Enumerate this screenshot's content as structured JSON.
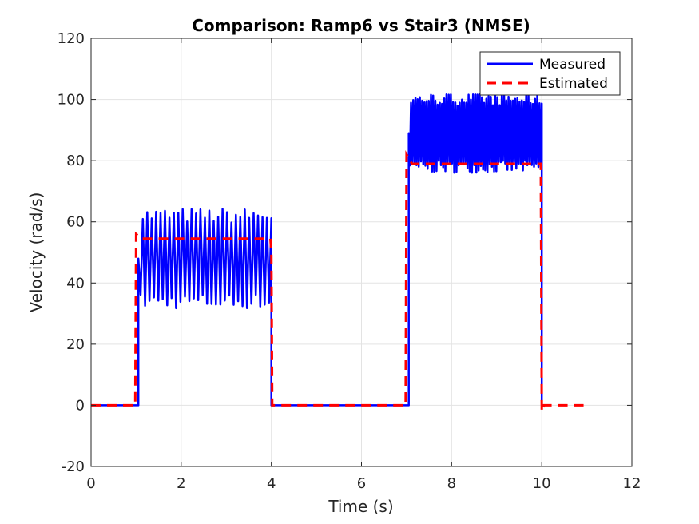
{
  "chart_data": {
    "type": "line",
    "title": "Comparison: Ramp6 vs Stair3 (NMSE)",
    "xlabel": "Time (s)",
    "ylabel": "Velocity (rad/s)",
    "xlim": [
      0,
      12
    ],
    "ylim": [
      -20,
      120
    ],
    "xticks": [
      0,
      2,
      4,
      6,
      8,
      10,
      12
    ],
    "yticks": [
      -20,
      0,
      20,
      40,
      60,
      80,
      100,
      120
    ],
    "grid": true,
    "legend_position": "top-right",
    "series": [
      {
        "name": "Measured",
        "color": "#0000ff",
        "style": "solid",
        "segments": [
          {
            "x_start": 0,
            "x_end": 1.05,
            "level": 0
          },
          {
            "x_start": 1.05,
            "x_end": 4.0,
            "low": 34,
            "high": 62,
            "cycles": 30
          },
          {
            "x_start": 4.0,
            "x_end": 7.05,
            "level": 0
          },
          {
            "x_start": 7.05,
            "x_end": 10.0,
            "low": 78,
            "high": 100,
            "cycles": 60
          },
          {
            "x_start": 10.0,
            "x_end": 10.05,
            "level": 0
          }
        ]
      },
      {
        "name": "Estimated",
        "color": "#ff0000",
        "style": "dashed",
        "points": [
          [
            0,
            0
          ],
          [
            0.98,
            0
          ],
          [
            1.0,
            56
          ],
          [
            1.12,
            54.5
          ],
          [
            3.98,
            54.5
          ],
          [
            4.0,
            50
          ],
          [
            4.02,
            0
          ],
          [
            6.98,
            0
          ],
          [
            7.0,
            82
          ],
          [
            7.12,
            79
          ],
          [
            9.98,
            79
          ],
          [
            10.0,
            -2
          ],
          [
            10.05,
            0
          ],
          [
            11.0,
            0
          ]
        ]
      }
    ]
  }
}
